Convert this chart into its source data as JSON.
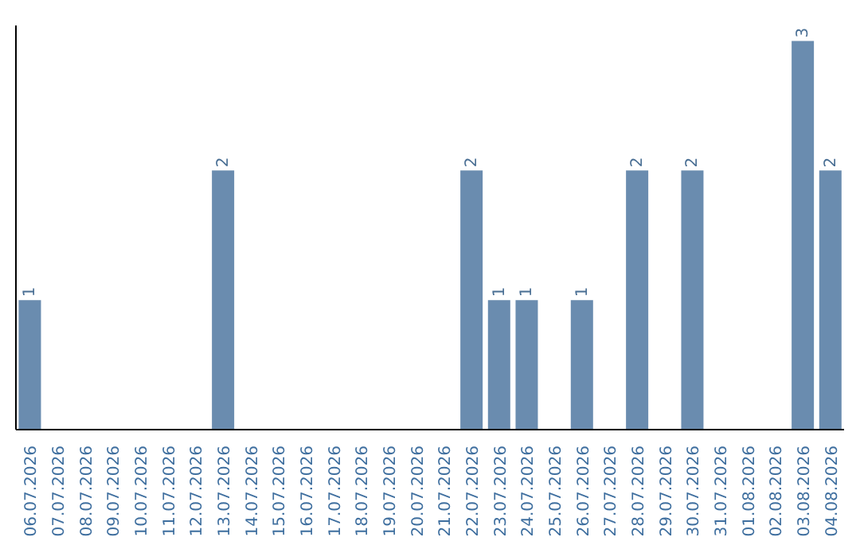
{
  "chart_data": {
    "type": "bar",
    "categories": [
      "06.07.2026",
      "07.07.2026",
      "08.07.2026",
      "09.07.2026",
      "10.07.2026",
      "11.07.2026",
      "12.07.2026",
      "13.07.2026",
      "14.07.2026",
      "15.07.2026",
      "16.07.2026",
      "17.07.2026",
      "18.07.2026",
      "19.07.2026",
      "20.07.2026",
      "21.07.2026",
      "22.07.2026",
      "23.07.2026",
      "24.07.2026",
      "25.07.2026",
      "26.07.2026",
      "27.07.2026",
      "28.07.2026",
      "29.07.2026",
      "30.07.2026",
      "31.07.2026",
      "01.08.2026",
      "02.08.2026",
      "03.08.2026",
      "04.08.2026"
    ],
    "values": [
      1,
      0,
      0,
      0,
      0,
      0,
      0,
      2,
      0,
      0,
      0,
      0,
      0,
      0,
      0,
      0,
      2,
      1,
      1,
      0,
      1,
      0,
      2,
      0,
      2,
      0,
      0,
      0,
      3,
      2
    ],
    "value_labels": [
      "1",
      null,
      null,
      null,
      null,
      null,
      null,
      "2",
      null,
      null,
      null,
      null,
      null,
      null,
      null,
      null,
      "2",
      "1",
      "1",
      null,
      "1",
      null,
      "2",
      null,
      "2",
      null,
      null,
      null,
      "3",
      "2"
    ],
    "color": "#6a8caf"
  }
}
